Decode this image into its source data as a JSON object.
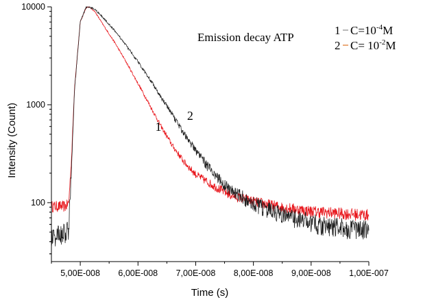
{
  "chart_data": {
    "type": "line",
    "title": "Emission decay ATP",
    "xlabel": "Time (s)",
    "ylabel": "Intensity (Count)",
    "xlim": [
      4.5e-08,
      1e-07
    ],
    "ylim": [
      25,
      10000
    ],
    "yscale": "log",
    "x_ticks": [
      5e-08,
      6e-08,
      7e-08,
      8e-08,
      9e-08,
      1e-07
    ],
    "x_tick_labels": [
      "5,00E-008",
      "6,00E-008",
      "7,00E-008",
      "8,00E-008",
      "9,00E-008",
      "1,00E-007"
    ],
    "y_ticks": [
      100,
      1000,
      10000
    ],
    "y_tick_labels": [
      "100",
      "1000",
      "10000"
    ],
    "grid": false,
    "legend_position": "top-right",
    "legend": [
      {
        "number": "1",
        "label_prefix": "C=10",
        "exponent": "-4",
        "label_suffix": "M",
        "color": "#888888"
      },
      {
        "number": "2",
        "label_prefix": "C= 10",
        "exponent": "-2",
        "label_suffix": "M",
        "color": "#e07020"
      }
    ],
    "annotations": [
      {
        "text": "1",
        "x": 6.3e-08,
        "y": 540
      },
      {
        "text": "2",
        "x": 6.85e-08,
        "y": 700
      }
    ],
    "series": [
      {
        "id": "1",
        "color": "#e8141a",
        "x": [
          4.5e-08,
          4.7e-08,
          4.75e-08,
          4.8e-08,
          4.85e-08,
          4.9e-08,
          5e-08,
          5.1e-08,
          5.15e-08,
          5.25e-08,
          5.4e-08,
          5.6e-08,
          5.8e-08,
          6e-08,
          6.2e-08,
          6.4e-08,
          6.6e-08,
          6.8e-08,
          7e-08,
          7.3e-08,
          7.6e-08,
          8e-08,
          8.5e-08,
          9e-08,
          9.5e-08,
          1e-07
        ],
        "y": [
          92,
          92,
          92,
          100,
          300,
          1500,
          7000,
          9800,
          10000,
          9000,
          6500,
          4300,
          2700,
          1650,
          1000,
          600,
          380,
          260,
          195,
          150,
          120,
          103,
          90,
          82,
          78,
          75
        ],
        "noise": 0.09
      },
      {
        "id": "2",
        "color": "#202020",
        "x": [
          4.5e-08,
          4.7e-08,
          4.75e-08,
          4.8e-08,
          4.85e-08,
          4.9e-08,
          5e-08,
          5.1e-08,
          5.15e-08,
          5.25e-08,
          5.4e-08,
          5.6e-08,
          5.8e-08,
          6e-08,
          6.2e-08,
          6.4e-08,
          6.6e-08,
          6.8e-08,
          7e-08,
          7.3e-08,
          7.6e-08,
          8e-08,
          8.5e-08,
          9e-08,
          9.5e-08,
          1e-07
        ],
        "y": [
          45,
          48,
          50,
          55,
          250,
          1400,
          7000,
          9900,
          10000,
          9500,
          7700,
          5700,
          4000,
          2750,
          1850,
          1200,
          780,
          510,
          340,
          200,
          135,
          98,
          75,
          63,
          56,
          52
        ],
        "noise": 0.13
      }
    ]
  }
}
